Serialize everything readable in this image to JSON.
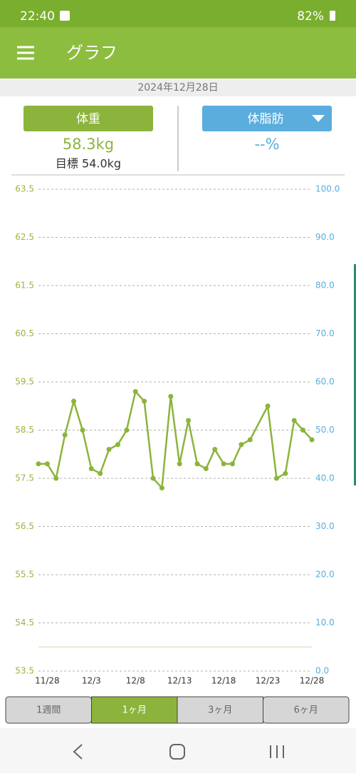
{
  "status_bar": {
    "time": "22:40",
    "battery": "82%"
  },
  "app_bar": {
    "title": "グラフ"
  },
  "date": "2024年12月28日",
  "tabs": {
    "weight": {
      "label": "体重",
      "value": "58.3kg",
      "goal": "目標 54.0kg"
    },
    "body_fat": {
      "label": "体脂肪",
      "value": "--%"
    }
  },
  "periods": {
    "labels": [
      "1週間",
      "1ヶ月",
      "3ヶ月",
      "6ヶ月"
    ],
    "selected": 1
  },
  "chart_data": {
    "type": "line",
    "x": [
      -1,
      0,
      1,
      2,
      3,
      4,
      5,
      6,
      7,
      8,
      9,
      10,
      11,
      12,
      13,
      14,
      15,
      16,
      17,
      18,
      19,
      20,
      21,
      22,
      23,
      25,
      26,
      27,
      28,
      29,
      30
    ],
    "series": [
      {
        "name": "体重",
        "color": "#8cb43c",
        "values": [
          57.8,
          57.8,
          57.5,
          58.4,
          59.1,
          58.5,
          57.7,
          57.6,
          58.1,
          58.2,
          58.5,
          59.3,
          59.1,
          57.5,
          57.3,
          59.2,
          57.8,
          58.7,
          57.8,
          57.7,
          58.1,
          57.8,
          57.8,
          58.2,
          58.3,
          59.0,
          57.5,
          57.6,
          58.7,
          58.5,
          58.3
        ]
      }
    ],
    "goal_line": 54.0,
    "xlim": [
      -1,
      30
    ],
    "xticks": [
      {
        "value": 0,
        "label": "11/28"
      },
      {
        "value": 5,
        "label": "12/3"
      },
      {
        "value": 10,
        "label": "12/8"
      },
      {
        "value": 15,
        "label": "12/13"
      },
      {
        "value": 20,
        "label": "12/18"
      },
      {
        "value": 25,
        "label": "12/23"
      },
      {
        "value": 30,
        "label": "12/28"
      }
    ],
    "ylim": [
      53.5,
      63.5
    ],
    "yticks": [
      53.5,
      54.5,
      55.5,
      56.5,
      57.5,
      58.5,
      59.5,
      60.5,
      61.5,
      62.5,
      63.5
    ],
    "y2lim": [
      0,
      100
    ],
    "y2ticks": [
      {
        "value": 0,
        "label": "0.0"
      },
      {
        "value": 10,
        "label": "10.0"
      },
      {
        "value": 20,
        "label": "20.0"
      },
      {
        "value": 30,
        "label": "30.0"
      },
      {
        "value": 40,
        "label": "40.0"
      },
      {
        "value": 50,
        "label": "50.0"
      },
      {
        "value": 60,
        "label": "60.0"
      },
      {
        "value": 70,
        "label": "70.0"
      },
      {
        "value": 80,
        "label": "80.0"
      },
      {
        "value": 90,
        "label": "90.0"
      },
      {
        "value": 100,
        "label": "100.0"
      }
    ],
    "grid": true
  }
}
